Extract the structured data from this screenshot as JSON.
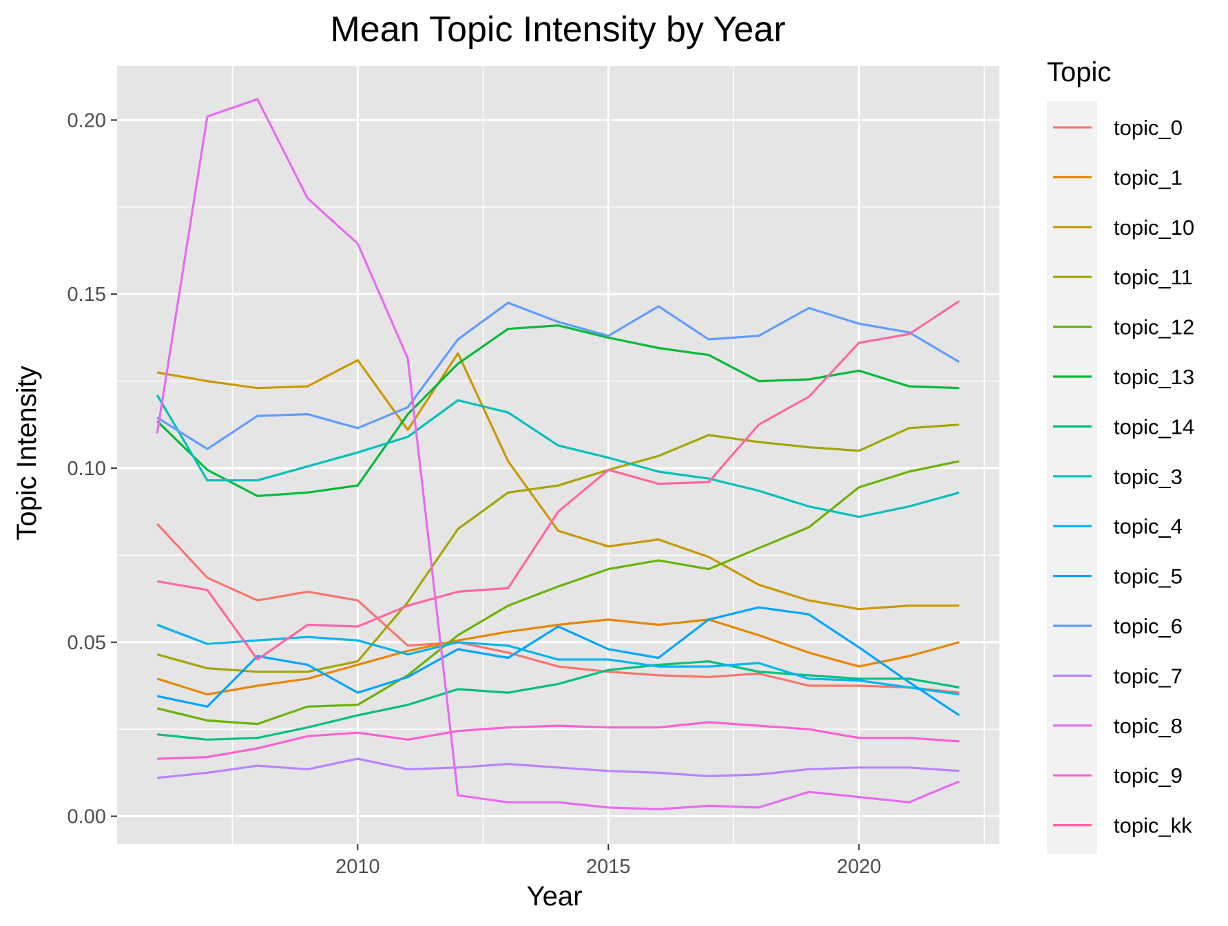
{
  "chart_data": {
    "type": "line",
    "title": "Mean Topic Intensity by Year",
    "xlabel": "Year",
    "ylabel": "Topic Intensity",
    "x": [
      2006,
      2007,
      2008,
      2009,
      2010,
      2011,
      2012,
      2013,
      2014,
      2015,
      2016,
      2017,
      2018,
      2019,
      2020,
      2021,
      2022
    ],
    "xlim": [
      2005.2,
      2022.8
    ],
    "ylim": [
      -0.008,
      0.2155
    ],
    "xticks": [
      2010,
      2015,
      2020
    ],
    "xtick_labels": [
      "2010",
      "2015",
      "2020"
    ],
    "yticks": [
      0,
      0.05,
      0.1,
      0.15,
      0.2
    ],
    "ytick_labels": [
      "0.00",
      "0.05",
      "0.10",
      "0.15",
      "0.20"
    ],
    "grid": true,
    "legend_title": "Topic",
    "legend_position": "right",
    "panel_color": "#e5e5e5",
    "grid_color": "#ffffff",
    "series": [
      {
        "name": "topic_0",
        "color": "#F8766D",
        "values": [
          0.084,
          0.0685,
          0.062,
          0.0645,
          0.062,
          0.049,
          0.05,
          0.047,
          0.043,
          0.0415,
          0.0405,
          0.04,
          0.041,
          0.0375,
          0.0375,
          0.037,
          0.0355
        ]
      },
      {
        "name": "topic_1",
        "color": "#E58700",
        "values": [
          0.0395,
          0.035,
          0.0375,
          0.0395,
          0.0435,
          0.0475,
          0.0505,
          0.053,
          0.055,
          0.0565,
          0.055,
          0.0565,
          0.052,
          0.047,
          0.043,
          0.046,
          0.05
        ]
      },
      {
        "name": "topic_10",
        "color": "#C99800",
        "values": [
          0.1275,
          0.125,
          0.123,
          0.1235,
          0.131,
          0.111,
          0.133,
          0.102,
          0.082,
          0.0775,
          0.0795,
          0.0745,
          0.0665,
          0.062,
          0.0595,
          0.0605,
          0.0605
        ]
      },
      {
        "name": "topic_11",
        "color": "#A3A500",
        "values": [
          0.0465,
          0.0425,
          0.0415,
          0.0415,
          0.0445,
          0.0615,
          0.0825,
          0.093,
          0.095,
          0.0995,
          0.1035,
          0.1095,
          0.1075,
          0.106,
          0.105,
          0.1115,
          0.1125
        ]
      },
      {
        "name": "topic_12",
        "color": "#6BB100",
        "values": [
          0.031,
          0.0275,
          0.0265,
          0.0315,
          0.032,
          0.0405,
          0.052,
          0.0605,
          0.066,
          0.071,
          0.0735,
          0.071,
          0.077,
          0.083,
          0.0945,
          0.099,
          0.102
        ]
      },
      {
        "name": "topic_13",
        "color": "#00BA38",
        "values": [
          0.1135,
          0.0995,
          0.092,
          0.093,
          0.095,
          0.1155,
          0.13,
          0.14,
          0.141,
          0.1375,
          0.1345,
          0.1325,
          0.125,
          0.1255,
          0.128,
          0.1235,
          0.123
        ]
      },
      {
        "name": "topic_14",
        "color": "#00BF7D",
        "values": [
          0.0235,
          0.022,
          0.0225,
          0.0255,
          0.029,
          0.032,
          0.0365,
          0.0355,
          0.038,
          0.042,
          0.0435,
          0.0445,
          0.0415,
          0.0405,
          0.0395,
          0.0395,
          0.037
        ]
      },
      {
        "name": "topic_3",
        "color": "#00C0B8",
        "values": [
          0.121,
          0.0965,
          0.0965,
          0.1005,
          0.1045,
          0.109,
          0.1195,
          0.116,
          0.1065,
          0.103,
          0.099,
          0.097,
          0.0935,
          0.089,
          0.086,
          0.089,
          0.093
        ]
      },
      {
        "name": "topic_4",
        "color": "#00B4F0",
        "values": [
          0.055,
          0.0495,
          0.0505,
          0.0515,
          0.0505,
          0.0465,
          0.05,
          0.049,
          0.045,
          0.045,
          0.043,
          0.043,
          0.044,
          0.0395,
          0.039,
          0.037,
          0.035
        ]
      },
      {
        "name": "topic_5",
        "color": "#00A5FF",
        "values": [
          0.0345,
          0.0315,
          0.046,
          0.0435,
          0.0355,
          0.04,
          0.048,
          0.0455,
          0.0545,
          0.048,
          0.0455,
          0.0565,
          0.06,
          0.058,
          0.0485,
          0.0385,
          0.029
        ]
      },
      {
        "name": "topic_6",
        "color": "#619CFF",
        "values": [
          0.1145,
          0.1055,
          0.115,
          0.1155,
          0.1115,
          0.1175,
          0.137,
          0.1475,
          0.142,
          0.138,
          0.1465,
          0.137,
          0.138,
          0.146,
          0.1415,
          0.139,
          0.1305
        ]
      },
      {
        "name": "topic_7",
        "color": "#B983FF",
        "values": [
          0.011,
          0.0125,
          0.0145,
          0.0135,
          0.0165,
          0.0135,
          0.014,
          0.015,
          0.014,
          0.013,
          0.0125,
          0.0115,
          0.012,
          0.0135,
          0.014,
          0.014,
          0.013
        ]
      },
      {
        "name": "topic_8",
        "color": "#E76BF3",
        "values": [
          0.11,
          0.201,
          0.206,
          0.1775,
          0.1645,
          0.1315,
          0.006,
          0.004,
          0.004,
          0.0025,
          0.002,
          0.003,
          0.0025,
          0.007,
          0.0055,
          0.004,
          0.01
        ]
      },
      {
        "name": "topic_9",
        "color": "#FD61D1",
        "values": [
          0.0165,
          0.017,
          0.0195,
          0.023,
          0.024,
          0.022,
          0.0245,
          0.0255,
          0.026,
          0.0255,
          0.0255,
          0.027,
          0.026,
          0.025,
          0.0225,
          0.0225,
          0.0215
        ]
      },
      {
        "name": "topic_kk",
        "color": "#FF67A4",
        "values": [
          0.0675,
          0.065,
          0.045,
          0.055,
          0.0545,
          0.0605,
          0.0645,
          0.0655,
          0.0875,
          0.0995,
          0.0955,
          0.096,
          0.1125,
          0.1205,
          0.136,
          0.1385,
          0.148
        ]
      }
    ]
  }
}
